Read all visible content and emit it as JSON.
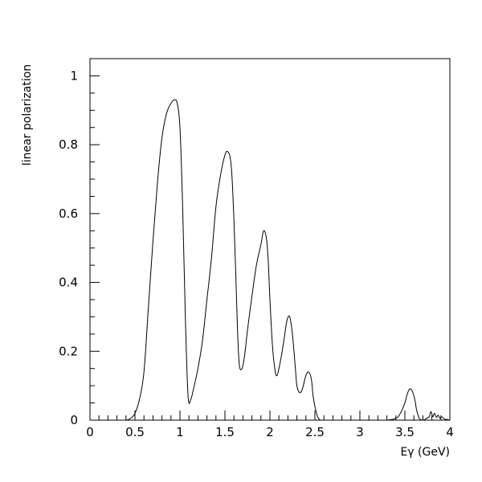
{
  "chart_data": {
    "type": "line",
    "title": "",
    "xlabel": "Eγ (GeV)",
    "ylabel": "linear polarization",
    "xlim": [
      0,
      4
    ],
    "ylim": [
      0,
      1.05
    ],
    "grid": false,
    "legend": "none",
    "x_ticks": [
      "0",
      "0.5",
      "1",
      "1.5",
      "2",
      "2.5",
      "3",
      "3.5",
      "4"
    ],
    "y_ticks": [
      "0",
      "0.2",
      "0.4",
      "0.6",
      "0.8",
      "1"
    ],
    "colors": {
      "line": "#000000",
      "axis": "#000000",
      "background": "#ffffff"
    },
    "series": [
      {
        "x": [
          0.0,
          0.3,
          0.4,
          0.45,
          0.5,
          0.55,
          0.6,
          0.65,
          0.7,
          0.75,
          0.8,
          0.85,
          0.9,
          0.94,
          0.97,
          1.0,
          1.03,
          1.06,
          1.09,
          1.12,
          1.15,
          1.2,
          1.25,
          1.3,
          1.35,
          1.4,
          1.45,
          1.5,
          1.53,
          1.56,
          1.58,
          1.6,
          1.62,
          1.64,
          1.66,
          1.69,
          1.72,
          1.75,
          1.8,
          1.85,
          1.9,
          1.93,
          1.96,
          1.98,
          2.0,
          2.03,
          2.06,
          2.08,
          2.1,
          2.13,
          2.16,
          2.19,
          2.22,
          2.25,
          2.28,
          2.3,
          2.33,
          2.36,
          2.4,
          2.43,
          2.46,
          2.48,
          2.5,
          2.53,
          2.56,
          2.6,
          3.2,
          3.3,
          3.4,
          3.45,
          3.5,
          3.52,
          3.55,
          3.58,
          3.61,
          3.63,
          3.66,
          3.7,
          3.74,
          3.77,
          3.79,
          3.81,
          3.83,
          3.85,
          3.87,
          3.89,
          3.91,
          3.94,
          3.97,
          4.0
        ],
        "values": [
          0.0,
          0.0,
          0.0,
          0.005,
          0.02,
          0.06,
          0.14,
          0.33,
          0.52,
          0.69,
          0.82,
          0.89,
          0.92,
          0.93,
          0.92,
          0.85,
          0.62,
          0.3,
          0.07,
          0.06,
          0.09,
          0.15,
          0.23,
          0.35,
          0.47,
          0.62,
          0.71,
          0.77,
          0.78,
          0.76,
          0.7,
          0.58,
          0.43,
          0.26,
          0.16,
          0.15,
          0.19,
          0.26,
          0.36,
          0.45,
          0.51,
          0.55,
          0.53,
          0.47,
          0.35,
          0.21,
          0.14,
          0.13,
          0.15,
          0.19,
          0.24,
          0.29,
          0.3,
          0.25,
          0.16,
          0.1,
          0.08,
          0.09,
          0.13,
          0.14,
          0.12,
          0.07,
          0.04,
          0.01,
          0.0,
          0.0,
          0.0,
          0.0,
          0.005,
          0.02,
          0.05,
          0.07,
          0.09,
          0.085,
          0.06,
          0.03,
          0.005,
          0.0,
          0.005,
          0.01,
          0.025,
          0.01,
          0.02,
          0.008,
          0.015,
          0.005,
          0.01,
          0.003,
          0.002,
          0.0
        ]
      }
    ]
  }
}
